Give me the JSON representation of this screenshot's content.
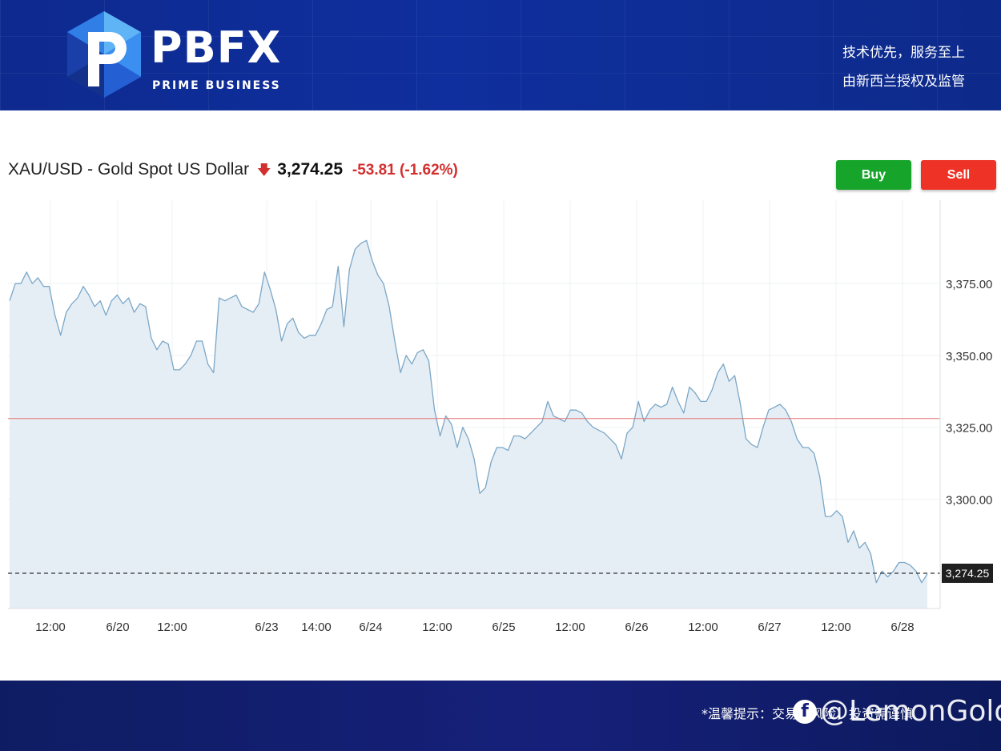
{
  "brand": {
    "name": "PBFX",
    "sub": "PRIME BUSINESS",
    "slogan_1": "技术优先，服务至上",
    "slogan_2": "由新西兰授权及监管",
    "colors": {
      "banner": "#0f2f9e",
      "footer": "#16207a",
      "logo_dark": "#1a4fd0",
      "logo_light": "#5fb4f5"
    }
  },
  "header": {
    "symbol": "XAU/USD - Gold Spot US Dollar",
    "direction_icon": "down-arrow-icon",
    "price": "3,274.25",
    "change": "-53.81 (-1.62%)",
    "colors": {
      "down": "#d32f2f"
    }
  },
  "actions": {
    "buy": "Buy",
    "sell": "Sell",
    "colors": {
      "buy": "#16a52a",
      "sell": "#ee3226"
    }
  },
  "footer": {
    "notice": "*温馨提示：交易有风险，投资需谨慎",
    "watermark": "@LemonGold",
    "watermark_icon": "facebook-icon"
  },
  "chart_data": {
    "type": "area",
    "title": "XAU/USD - Gold Spot US Dollar",
    "xlabel": "",
    "ylabel": "",
    "x_ticks": [
      "12:00",
      "6/20",
      "12:00",
      "6/23",
      "14:00",
      "6/24",
      "12:00",
      "6/25",
      "12:00",
      "6/26",
      "12:00",
      "6/27",
      "12:00",
      "6/28"
    ],
    "y_ticks": [
      "3,375.00",
      "3,350.00",
      "3,325.00",
      "3,300.00"
    ],
    "ylim": [
      3262,
      3404
    ],
    "grid": true,
    "legend": "none",
    "reference_lines": [
      {
        "kind": "previous_close",
        "value": 3328.06,
        "color": "#e57373",
        "style": "solid"
      },
      {
        "kind": "last_price",
        "value": 3274.25,
        "label": "3,274.25",
        "color": "#333333",
        "style": "dashed"
      }
    ],
    "colors": {
      "line": "#7ba7c7",
      "fill": "#e5eef5"
    },
    "series": [
      {
        "values": [
          3369,
          3375,
          3375,
          3379,
          3375,
          3377,
          3374,
          3374,
          3364,
          3357,
          3365,
          3368,
          3370,
          3374,
          3371,
          3367,
          3369,
          3364,
          3369,
          3371,
          3368,
          3370,
          3365,
          3368,
          3367,
          3356,
          3352,
          3355,
          3354,
          3345,
          3345,
          3347,
          3350,
          3355,
          3355,
          3347,
          3344,
          3370,
          3369,
          3370,
          3371,
          3367,
          3366,
          3365,
          3368,
          3379,
          3373,
          3366,
          3355,
          3361,
          3363,
          3358,
          3356,
          3357,
          3357,
          3361,
          3366,
          3367,
          3381,
          3360,
          3380,
          3387,
          3389,
          3390,
          3383,
          3378,
          3375,
          3367,
          3355,
          3344,
          3350,
          3347,
          3351,
          3352,
          3348,
          3331,
          3322,
          3329,
          3326,
          3318,
          3325,
          3321,
          3314,
          3302,
          3304,
          3313,
          3318,
          3318,
          3317,
          3322,
          3322,
          3321,
          3323,
          3325,
          3327,
          3334,
          3329,
          3328,
          3327,
          3331,
          3331,
          3330,
          3327,
          3325,
          3324,
          3323,
          3321,
          3319,
          3314,
          3323,
          3325,
          3334,
          3327,
          3331,
          3333,
          3332,
          3333,
          3339,
          3334,
          3330,
          3339,
          3337,
          3334,
          3334,
          3338,
          3344,
          3347,
          3341,
          3343,
          3333,
          3321,
          3319,
          3318,
          3325,
          3331,
          3332,
          3333,
          3331,
          3327,
          3321,
          3318,
          3318,
          3316,
          3308,
          3294,
          3294,
          3296,
          3294,
          3285,
          3289,
          3283,
          3285,
          3281,
          3271,
          3275,
          3273,
          3275,
          3278,
          3278,
          3277,
          3275,
          3271,
          3274
        ]
      }
    ]
  }
}
